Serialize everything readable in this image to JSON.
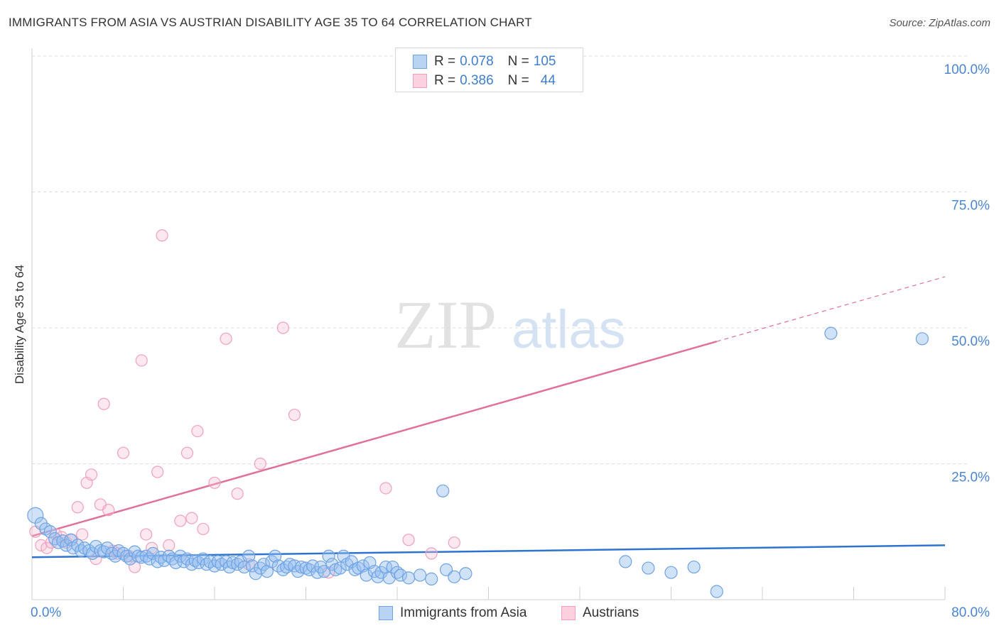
{
  "title": "IMMIGRANTS FROM ASIA VS AUSTRIAN DISABILITY AGE 35 TO 64 CORRELATION CHART",
  "source": "Source: ZipAtlas.com",
  "watermark": {
    "zip": "ZIP",
    "atlas": "atlas"
  },
  "legend": {
    "r_label": "R =",
    "n_label": "N =",
    "rows": [
      {
        "r": "0.078",
        "n": "105"
      },
      {
        "r": "0.386",
        "n": "44"
      }
    ]
  },
  "chart_data": {
    "type": "scatter",
    "title": "IMMIGRANTS FROM ASIA VS AUSTRIAN DISABILITY AGE 35 TO 64 CORRELATION CHART",
    "xlabel": "",
    "ylabel": "Disability Age 35 to 64",
    "xlim": [
      0,
      80
    ],
    "ylim": [
      0,
      100
    ],
    "x_tick_labels": [
      "0.0%",
      "80.0%"
    ],
    "y_tick_labels": [
      "25.0%",
      "50.0%",
      "75.0%",
      "100.0%"
    ],
    "y_ticks": [
      25,
      50,
      75,
      100
    ],
    "grid": true,
    "colors": {
      "asia": "#6fa3e3",
      "austrians": "#f2a0bb",
      "asia_line": "#2f73d1",
      "austrians_line": "#e07198",
      "axis_text": "#4a86d4"
    },
    "series": [
      {
        "name": "Immigrants from Asia",
        "r": 0.078,
        "n": 105,
        "trend": {
          "x0": 0,
          "y0": 7.8,
          "x1": 80,
          "y1": 10.0
        },
        "points": [
          [
            0.3,
            15.5
          ],
          [
            0.8,
            14.0
          ],
          [
            1.2,
            13.0
          ],
          [
            1.6,
            12.5
          ],
          [
            2.0,
            11.2
          ],
          [
            2.3,
            10.5
          ],
          [
            2.7,
            10.8
          ],
          [
            3.0,
            10.0
          ],
          [
            3.4,
            11.0
          ],
          [
            3.6,
            9.5
          ],
          [
            4.0,
            10.0
          ],
          [
            4.3,
            9.0
          ],
          [
            4.6,
            9.5
          ],
          [
            5.0,
            9.0
          ],
          [
            5.3,
            8.5
          ],
          [
            5.6,
            9.8
          ],
          [
            6.0,
            9.0
          ],
          [
            6.3,
            8.8
          ],
          [
            6.6,
            9.5
          ],
          [
            7.0,
            8.5
          ],
          [
            7.3,
            8.0
          ],
          [
            7.6,
            9.0
          ],
          [
            8.0,
            8.5
          ],
          [
            8.3,
            8.0
          ],
          [
            8.6,
            7.5
          ],
          [
            9.0,
            8.8
          ],
          [
            9.3,
            8.0
          ],
          [
            9.6,
            7.8
          ],
          [
            10.0,
            8.0
          ],
          [
            10.3,
            7.5
          ],
          [
            10.6,
            8.5
          ],
          [
            11.0,
            7.0
          ],
          [
            11.3,
            7.8
          ],
          [
            11.6,
            7.2
          ],
          [
            12.0,
            8.0
          ],
          [
            12.3,
            7.5
          ],
          [
            12.6,
            6.8
          ],
          [
            13.0,
            8.0
          ],
          [
            13.3,
            7.0
          ],
          [
            13.6,
            7.5
          ],
          [
            14.0,
            6.5
          ],
          [
            14.3,
            7.2
          ],
          [
            14.6,
            6.8
          ],
          [
            15.0,
            7.5
          ],
          [
            15.3,
            6.5
          ],
          [
            15.6,
            7.0
          ],
          [
            16.0,
            6.2
          ],
          [
            16.3,
            7.0
          ],
          [
            16.6,
            6.5
          ],
          [
            17.0,
            7.0
          ],
          [
            17.3,
            6.0
          ],
          [
            17.6,
            6.8
          ],
          [
            18.0,
            6.5
          ],
          [
            18.3,
            7.0
          ],
          [
            18.6,
            6.0
          ],
          [
            19.0,
            8.0
          ],
          [
            19.3,
            6.2
          ],
          [
            19.6,
            4.8
          ],
          [
            20.0,
            5.8
          ],
          [
            20.3,
            6.5
          ],
          [
            20.6,
            5.2
          ],
          [
            21.0,
            7.0
          ],
          [
            21.3,
            8.0
          ],
          [
            21.6,
            6.2
          ],
          [
            22.0,
            5.5
          ],
          [
            22.3,
            6.0
          ],
          [
            22.6,
            6.5
          ],
          [
            23.0,
            6.2
          ],
          [
            23.3,
            5.2
          ],
          [
            23.6,
            6.0
          ],
          [
            24.0,
            5.8
          ],
          [
            24.3,
            5.5
          ],
          [
            24.6,
            6.2
          ],
          [
            25.0,
            5.0
          ],
          [
            25.3,
            6.0
          ],
          [
            25.6,
            5.2
          ],
          [
            26.0,
            8.0
          ],
          [
            26.3,
            6.5
          ],
          [
            26.6,
            5.5
          ],
          [
            27.0,
            5.8
          ],
          [
            27.3,
            8.0
          ],
          [
            27.6,
            6.5
          ],
          [
            28.0,
            7.0
          ],
          [
            28.3,
            5.5
          ],
          [
            28.6,
            5.8
          ],
          [
            29.0,
            6.2
          ],
          [
            29.3,
            4.5
          ],
          [
            29.6,
            6.8
          ],
          [
            30.0,
            5.2
          ],
          [
            30.3,
            4.2
          ],
          [
            30.6,
            5.0
          ],
          [
            31.0,
            6.0
          ],
          [
            31.3,
            4.0
          ],
          [
            31.6,
            6.0
          ],
          [
            32.0,
            5.0
          ],
          [
            32.3,
            4.5
          ],
          [
            33.0,
            4.0
          ],
          [
            34.0,
            4.5
          ],
          [
            35.0,
            3.8
          ],
          [
            36.0,
            20.0
          ],
          [
            36.3,
            5.5
          ],
          [
            37.0,
            4.2
          ],
          [
            38.0,
            4.8
          ],
          [
            70.0,
            49.0
          ],
          [
            78.0,
            48.0
          ],
          [
            56.0,
            5.0
          ],
          [
            60.0,
            1.5
          ],
          [
            52.0,
            7.0
          ],
          [
            54.0,
            5.8
          ],
          [
            58.0,
            6.0
          ]
        ]
      },
      {
        "name": "Austrians",
        "r": 0.386,
        "n": 44,
        "trend": {
          "x0": 0,
          "y0": 11.7,
          "x1": 60,
          "y1": 47.5,
          "dash_x1": 80,
          "dash_y1": 59.4
        },
        "points": [
          [
            0.3,
            12.5
          ],
          [
            0.8,
            10.0
          ],
          [
            1.3,
            9.5
          ],
          [
            1.7,
            10.5
          ],
          [
            2.1,
            12.0
          ],
          [
            2.6,
            11.5
          ],
          [
            3.0,
            10.5
          ],
          [
            3.5,
            11.0
          ],
          [
            4.0,
            17.0
          ],
          [
            4.4,
            12.0
          ],
          [
            4.8,
            21.5
          ],
          [
            5.2,
            23.0
          ],
          [
            5.6,
            7.5
          ],
          [
            6.0,
            17.5
          ],
          [
            6.3,
            36.0
          ],
          [
            6.7,
            16.5
          ],
          [
            7.1,
            9.0
          ],
          [
            7.5,
            8.5
          ],
          [
            8.0,
            27.0
          ],
          [
            8.5,
            8.0
          ],
          [
            9.0,
            6.0
          ],
          [
            9.6,
            44.0
          ],
          [
            10.0,
            12.0
          ],
          [
            10.5,
            9.5
          ],
          [
            11.0,
            23.5
          ],
          [
            11.4,
            67.0
          ],
          [
            12.0,
            10.0
          ],
          [
            13.0,
            14.5
          ],
          [
            13.6,
            27.0
          ],
          [
            14.0,
            15.0
          ],
          [
            14.5,
            31.0
          ],
          [
            15.0,
            13.0
          ],
          [
            16.0,
            21.5
          ],
          [
            17.0,
            48.0
          ],
          [
            18.0,
            19.5
          ],
          [
            19.0,
            6.5
          ],
          [
            20.0,
            25.0
          ],
          [
            22.0,
            50.0
          ],
          [
            23.0,
            34.0
          ],
          [
            26.0,
            5.0
          ],
          [
            31.0,
            20.5
          ],
          [
            33.0,
            11.0
          ],
          [
            35.0,
            8.5
          ],
          [
            37.0,
            10.5
          ]
        ]
      }
    ]
  },
  "bottom_legend": [
    "Immigrants from Asia",
    "Austrians"
  ]
}
